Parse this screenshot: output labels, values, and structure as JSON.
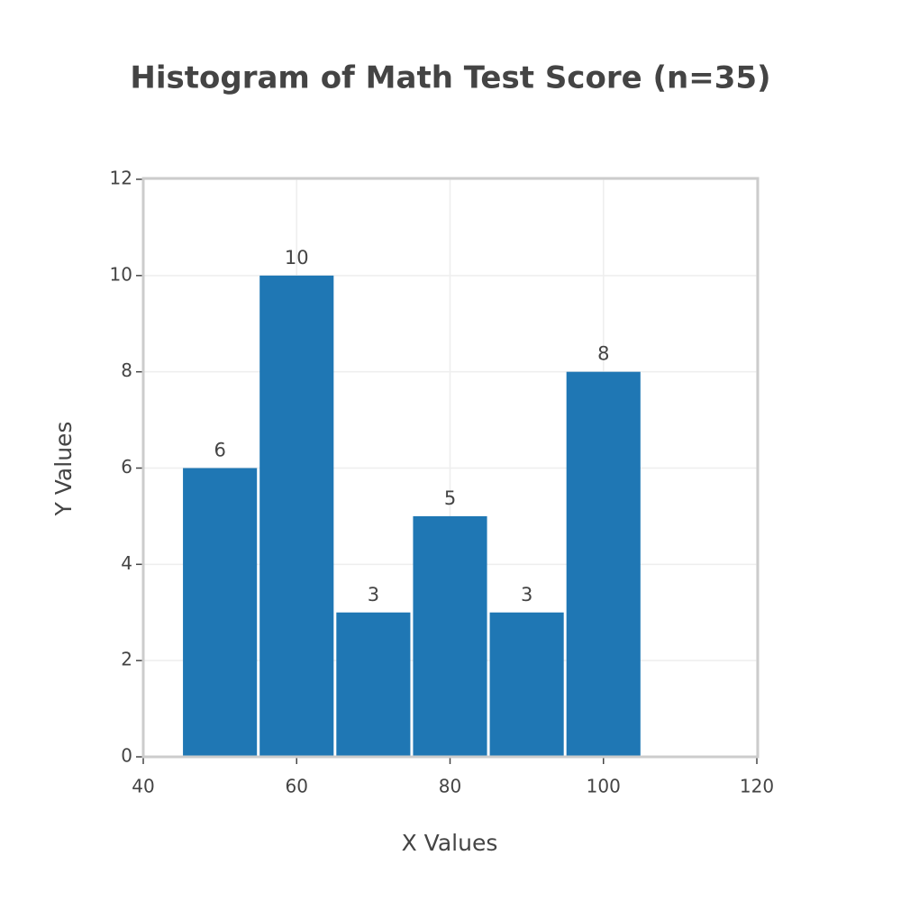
{
  "chart_data": {
    "type": "histogram",
    "title": "Histogram of Math Test Score (n=35)",
    "x_label": "X Values",
    "y_label": "Y Values",
    "bins": [
      45,
      55,
      65,
      75,
      85,
      95,
      105
    ],
    "values": [
      6,
      10,
      3,
      5,
      3,
      8
    ],
    "color": "#1f77b4",
    "xlim": [
      40,
      120
    ],
    "xticks": [
      40,
      60,
      80,
      100,
      120
    ],
    "ylim": [
      0,
      12
    ],
    "yticks": [
      0,
      2,
      4,
      6,
      8,
      10,
      12
    ],
    "grid": true
  }
}
